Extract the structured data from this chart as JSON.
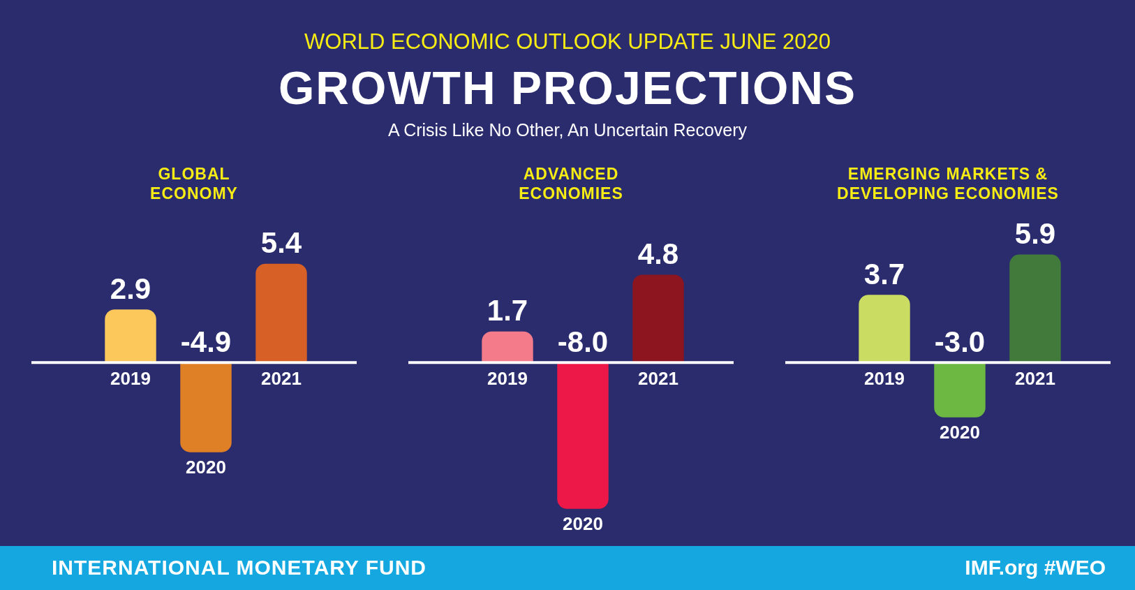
{
  "chart_data": [
    {
      "type": "other",
      "title": "GROWTH PROJECTIONS",
      "subtitle": "A Crisis Like No Other, An Uncertain Recovery",
      "annotations": [
        "WORLD ECONOMIC OUTLOOK UPDATE JUNE 2020",
        "INTERNATIONAL MONETARY FUND",
        "IMF.org  #WEO"
      ]
    },
    {
      "type": "bar",
      "title": "GLOBAL\nECONOMY",
      "categories": [
        "2019",
        "2020",
        "2021"
      ],
      "values": [
        2.9,
        -4.9,
        5.4
      ],
      "colors": [
        "#fcc85c",
        "#e08026",
        "#d76027"
      ],
      "value_labels": [
        "2.9",
        "-4.9",
        "5.4"
      ]
    },
    {
      "type": "bar",
      "title": "ADVANCED\nECONOMIES",
      "categories": [
        "2019",
        "2020",
        "2021"
      ],
      "values": [
        1.7,
        -8.0,
        4.8
      ],
      "colors": [
        "#f47c8a",
        "#ed1847",
        "#8c1520"
      ],
      "value_labels": [
        "1.7",
        "-8.0",
        "4.8"
      ]
    },
    {
      "type": "bar",
      "title": "EMERGING MARKETS &\nDEVELOPING ECONOMIES",
      "categories": [
        "2019",
        "2020",
        "2021"
      ],
      "values": [
        3.7,
        -3.0,
        5.9
      ],
      "colors": [
        "#cbdc62",
        "#6cb843",
        "#417a3a"
      ],
      "value_labels": [
        "3.7",
        "-3.0",
        "5.9"
      ]
    }
  ]
}
